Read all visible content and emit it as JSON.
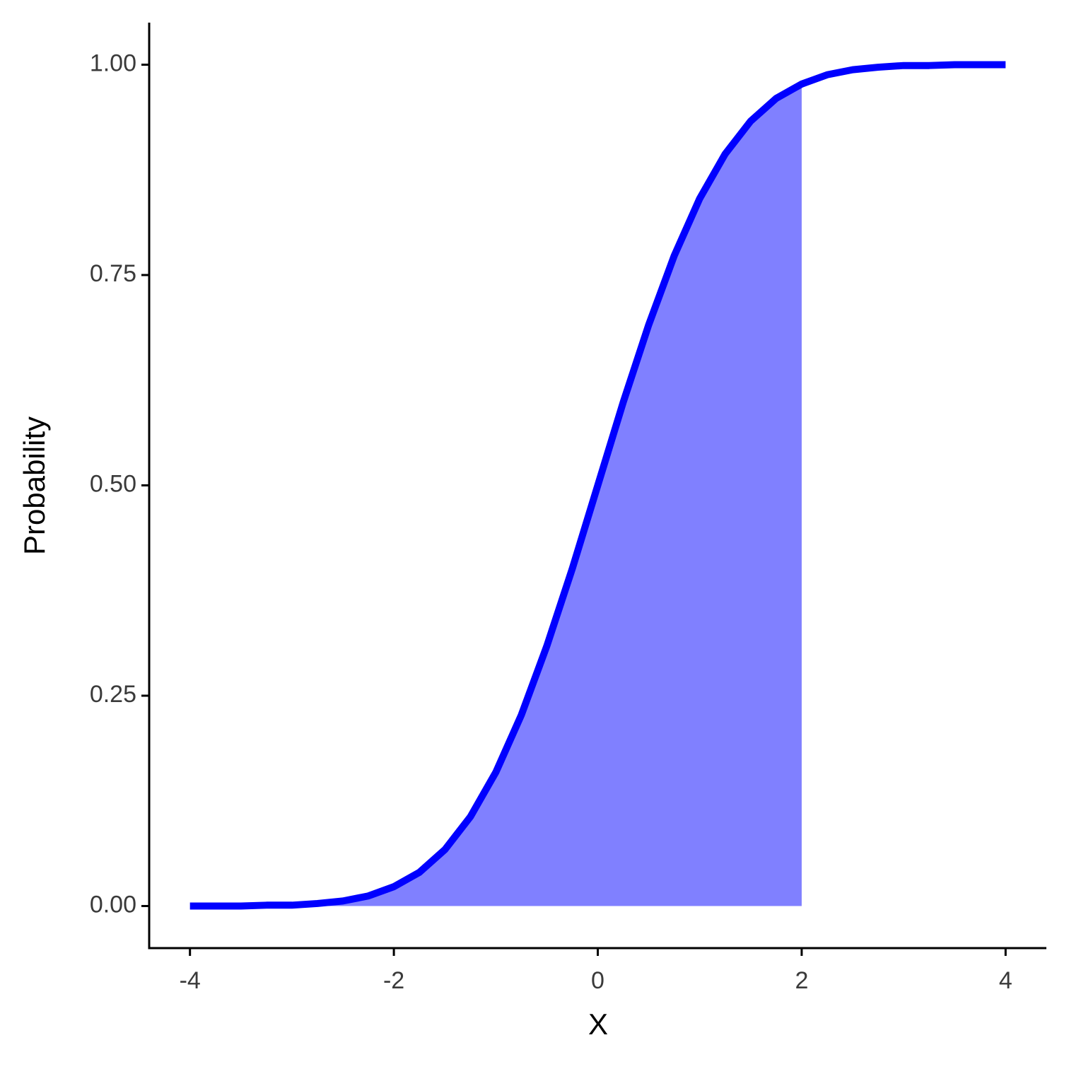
{
  "chart_data": {
    "type": "line",
    "x_label": "X",
    "y_label": "Probability",
    "x": [
      -4,
      -3.75,
      -3.5,
      -3.25,
      -3,
      -2.75,
      -2.5,
      -2.25,
      -2,
      -1.75,
      -1.5,
      -1.25,
      -1,
      -0.75,
      -0.5,
      -0.25,
      0,
      0.25,
      0.5,
      0.75,
      1,
      1.25,
      1.5,
      1.75,
      2,
      2.25,
      2.5,
      2.75,
      3,
      3.25,
      3.5,
      3.75,
      4
    ],
    "series": [
      {
        "color": "#0000ff",
        "values": [
          0.0,
          0.0,
          0.0,
          0.001,
          0.001,
          0.003,
          0.006,
          0.012,
          0.023,
          0.04,
          0.067,
          0.106,
          0.159,
          0.227,
          0.309,
          0.401,
          0.5,
          0.599,
          0.691,
          0.773,
          0.841,
          0.894,
          0.933,
          0.96,
          0.977,
          0.988,
          0.994,
          0.997,
          0.999,
          0.999,
          1.0,
          1.0,
          1.0
        ]
      }
    ],
    "area": {
      "color": "#8080ff",
      "x": [
        -4,
        -3.75,
        -3.5,
        -3.25,
        -3,
        -2.75,
        -2.5,
        -2.25,
        -2,
        -1.75,
        -1.5,
        -1.25,
        -1,
        -0.75,
        -0.5,
        -0.25,
        0,
        0.25,
        0.5,
        0.75,
        1,
        1.25,
        1.5,
        1.75,
        2
      ],
      "values": [
        0.0,
        0.0,
        0.0,
        0.001,
        0.001,
        0.003,
        0.006,
        0.012,
        0.023,
        0.04,
        0.067,
        0.106,
        0.159,
        0.227,
        0.309,
        0.401,
        0.5,
        0.599,
        0.691,
        0.773,
        0.841,
        0.894,
        0.933,
        0.96,
        0.977
      ]
    },
    "xlim": [
      -4.4,
      4.4
    ],
    "xticks": [
      -4,
      -2,
      0,
      2,
      4
    ],
    "ylim": [
      -0.05,
      1.05
    ],
    "yticks": [
      {
        "value": 0,
        "label": "0.00"
      },
      {
        "value": 0.25,
        "label": "0.25"
      },
      {
        "value": 0.5,
        "label": "0.50"
      },
      {
        "value": 0.75,
        "label": "0.75"
      },
      {
        "value": 1,
        "label": "1.00"
      }
    ],
    "grid": false
  }
}
